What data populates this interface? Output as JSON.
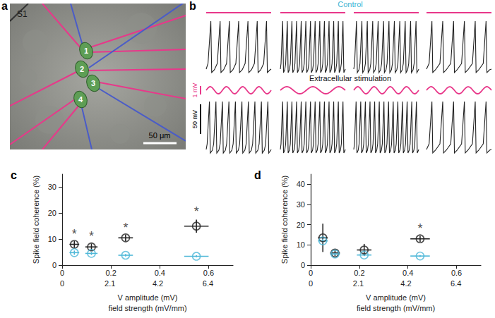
{
  "panels": {
    "a": {
      "label": "a",
      "region": "S1",
      "cells": [
        "1",
        "2",
        "3",
        "4"
      ],
      "scale_bar": "50 μm"
    },
    "b": {
      "label": "b",
      "conditions": [
        {
          "name": "Control",
          "color": "#3cb4d4",
          "spike_counts": [
            7,
            14,
            12,
            6
          ]
        },
        {
          "name": "Extracellular stimulation",
          "color": "#111111",
          "spike_counts": [
            10,
            14,
            14,
            6
          ]
        }
      ],
      "scale_bars": [
        "1 mV",
        "50 mV"
      ]
    }
  },
  "chart_data": [
    {
      "type": "scatter",
      "title": "c",
      "xlabel": "V amplitude (mV)",
      "x2label": "field strength (mV/mm)",
      "ylabel": "Spike field coherence (%)",
      "xlim": [
        0,
        0.7
      ],
      "xticks": [
        0,
        0.2,
        0.4,
        0.6
      ],
      "x2lim": [
        0,
        7.5
      ],
      "x2ticks": [
        0,
        2.1,
        4.2,
        6.4
      ],
      "ylim": [
        0,
        35
      ],
      "yticks": [
        0,
        10,
        20,
        30
      ],
      "grid": false,
      "series": [
        {
          "color": "#222222",
          "marker": "circle",
          "x": [
            0.05,
            0.12,
            0.26,
            0.55
          ],
          "values": [
            8,
            7,
            10.5,
            15
          ],
          "yerr": [
            1.3,
            1.3,
            1.3,
            2.5
          ],
          "xerr": [
            0.02,
            0.025,
            0.03,
            0.05
          ]
        },
        {
          "color": "#4fb8d8",
          "marker": "circle",
          "x": [
            0.05,
            0.12,
            0.26,
            0.55
          ],
          "values": [
            4.8,
            4.5,
            3.8,
            3.4
          ],
          "yerr": [
            0.8,
            0.6,
            0.5,
            0.4
          ],
          "xerr": [
            0.02,
            0.025,
            0.03,
            0.05
          ]
        }
      ],
      "annotations": [
        {
          "text": "*",
          "x": 0.05,
          "y": 12
        },
        {
          "text": "*",
          "x": 0.12,
          "y": 11
        },
        {
          "text": "*",
          "x": 0.26,
          "y": 14.5
        },
        {
          "text": "*",
          "x": 0.55,
          "y": 20.5
        }
      ]
    },
    {
      "type": "scatter",
      "title": "d",
      "xlabel": "V amplitude (mV)",
      "x2label": "field strength (mV/mm)",
      "ylabel": "Spike field coherence (%)",
      "xlim": [
        0,
        0.7
      ],
      "xticks": [
        0,
        0.2,
        0.4,
        0.6
      ],
      "x2lim": [
        0,
        7.5
      ],
      "x2ticks": [
        0,
        2.1,
        4.2,
        6.4
      ],
      "ylim": [
        0,
        45
      ],
      "yticks": [
        0,
        10,
        20,
        30,
        40
      ],
      "grid": false,
      "series": [
        {
          "color": "#222222",
          "marker": "circle",
          "x": [
            0.05,
            0.1,
            0.22,
            0.45
          ],
          "values": [
            13.5,
            6,
            7.5,
            13
          ],
          "yerr": [
            7,
            1.5,
            3,
            1.5
          ],
          "xerr": [
            0.02,
            0.02,
            0.03,
            0.04
          ]
        },
        {
          "color": "#4fb8d8",
          "marker": "circle",
          "x": [
            0.05,
            0.1,
            0.22,
            0.45
          ],
          "values": [
            12,
            5.5,
            5,
            4.5
          ],
          "yerr": [
            1,
            0.5,
            0.5,
            0.5
          ],
          "xerr": [
            0.02,
            0.02,
            0.03,
            0.04
          ]
        }
      ],
      "annotations": [
        {
          "text": "*",
          "x": 0.45,
          "y": 18
        }
      ]
    }
  ]
}
